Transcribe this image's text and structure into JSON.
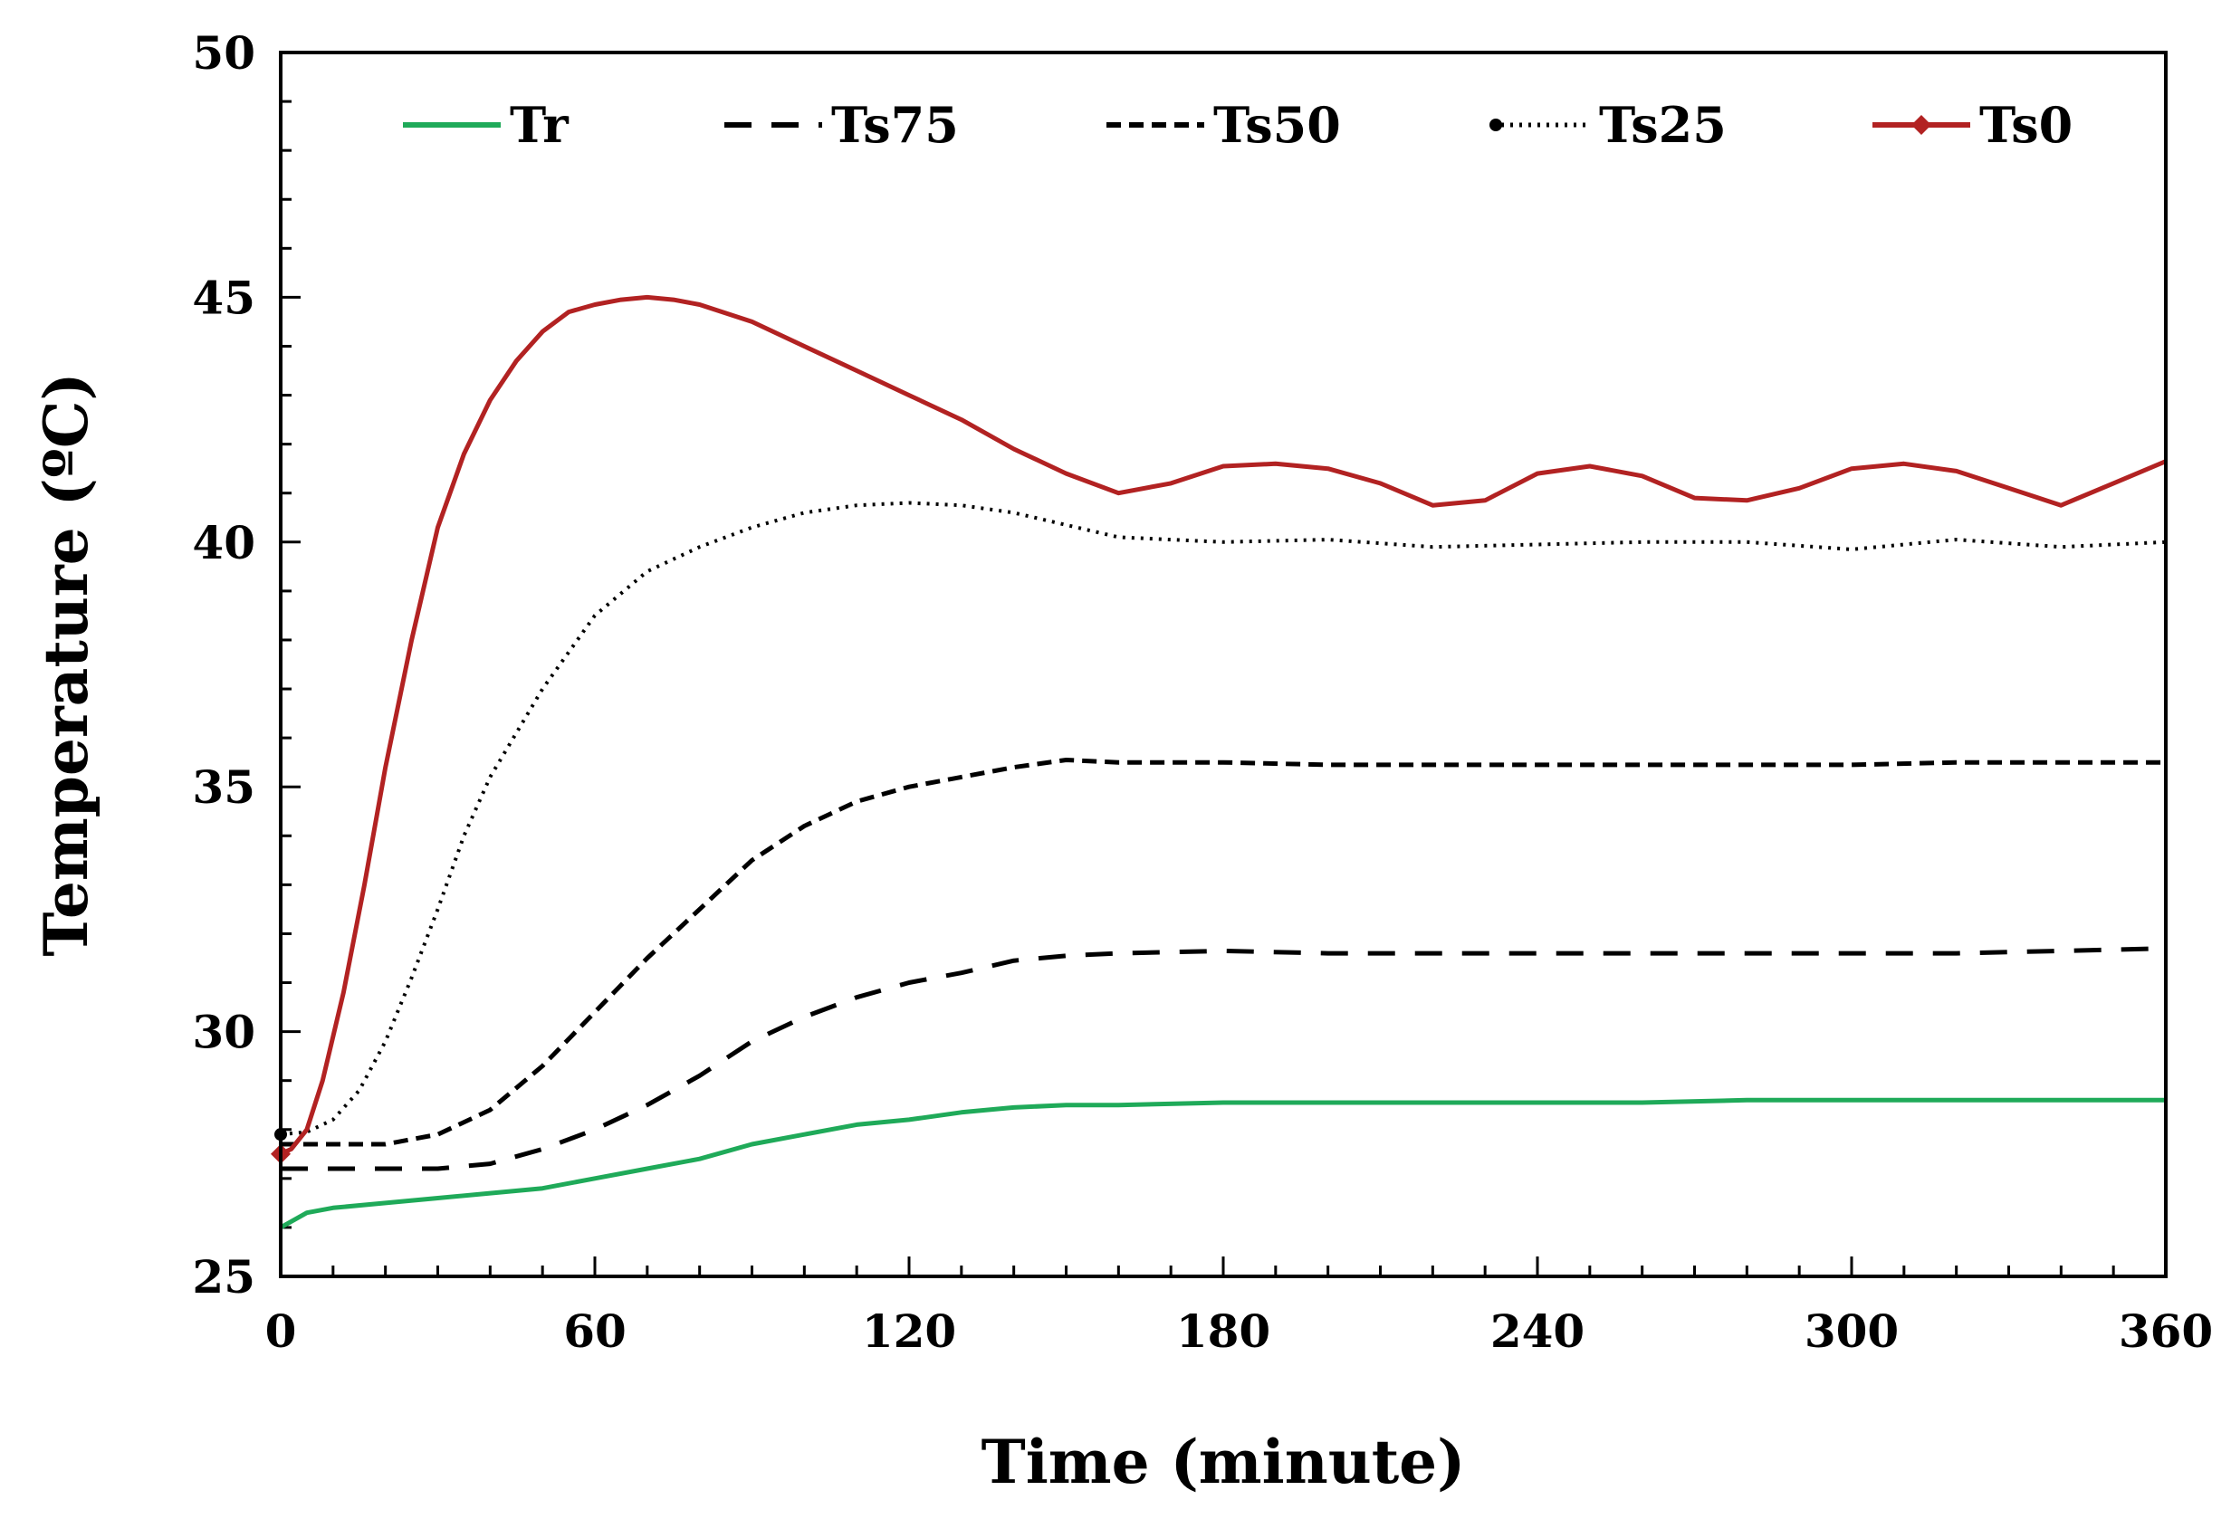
{
  "chart_data": {
    "type": "line",
    "title": "",
    "xlabel": "Time (minute)",
    "ylabel": "Temperature (ºC)",
    "xlim": [
      0,
      360
    ],
    "ylim": [
      25,
      50
    ],
    "xticks": [
      0,
      60,
      120,
      180,
      240,
      300,
      360
    ],
    "yticks": [
      25,
      30,
      35,
      40,
      45,
      50
    ],
    "legend_position": "top",
    "series": [
      {
        "name": "Tr",
        "color": "#1faa59",
        "style": "solid",
        "x": [
          0,
          5,
          10,
          20,
          30,
          40,
          50,
          60,
          70,
          80,
          90,
          100,
          110,
          120,
          130,
          140,
          150,
          160,
          180,
          200,
          220,
          240,
          260,
          280,
          300,
          320,
          340,
          360
        ],
        "y": [
          26.0,
          26.3,
          26.4,
          26.5,
          26.6,
          26.7,
          26.8,
          27.0,
          27.2,
          27.4,
          27.7,
          27.9,
          28.1,
          28.2,
          28.35,
          28.45,
          28.5,
          28.5,
          28.55,
          28.55,
          28.55,
          28.55,
          28.55,
          28.6,
          28.6,
          28.6,
          28.6,
          28.6
        ]
      },
      {
        "name": "Ts75",
        "color": "#000000",
        "style": "longdash",
        "x": [
          0,
          5,
          10,
          20,
          30,
          40,
          50,
          60,
          70,
          80,
          90,
          100,
          110,
          120,
          130,
          140,
          150,
          160,
          180,
          200,
          220,
          240,
          260,
          280,
          300,
          320,
          340,
          360
        ],
        "y": [
          27.2,
          27.2,
          27.2,
          27.2,
          27.2,
          27.3,
          27.6,
          28.0,
          28.5,
          29.1,
          29.8,
          30.3,
          30.7,
          31.0,
          31.2,
          31.45,
          31.55,
          31.6,
          31.65,
          31.6,
          31.6,
          31.6,
          31.6,
          31.6,
          31.6,
          31.6,
          31.65,
          31.7
        ]
      },
      {
        "name": "Ts50",
        "color": "#000000",
        "style": "dash",
        "x": [
          0,
          5,
          10,
          20,
          30,
          40,
          50,
          60,
          70,
          80,
          90,
          100,
          110,
          120,
          130,
          140,
          150,
          160,
          180,
          200,
          220,
          240,
          260,
          280,
          300,
          320,
          340,
          360
        ],
        "y": [
          27.7,
          27.7,
          27.7,
          27.7,
          27.9,
          28.4,
          29.3,
          30.4,
          31.5,
          32.5,
          33.5,
          34.2,
          34.7,
          35.0,
          35.2,
          35.4,
          35.55,
          35.5,
          35.5,
          35.45,
          35.45,
          35.45,
          35.45,
          35.45,
          35.45,
          35.5,
          35.5,
          35.5
        ]
      },
      {
        "name": "Ts25",
        "color": "#000000",
        "style": "dot",
        "x": [
          0,
          5,
          10,
          15,
          20,
          25,
          30,
          35,
          40,
          50,
          60,
          70,
          80,
          90,
          100,
          110,
          120,
          130,
          140,
          150,
          160,
          180,
          200,
          220,
          240,
          260,
          280,
          300,
          320,
          340,
          360
        ],
        "y": [
          27.9,
          27.95,
          28.2,
          28.8,
          29.8,
          31.1,
          32.5,
          34.0,
          35.2,
          37.0,
          38.5,
          39.4,
          39.9,
          40.3,
          40.6,
          40.75,
          40.8,
          40.75,
          40.6,
          40.35,
          40.1,
          40.0,
          40.05,
          39.9,
          39.95,
          40.0,
          40.0,
          39.85,
          40.05,
          39.9,
          40.0
        ]
      },
      {
        "name": "Ts0",
        "color": "#b22222",
        "style": "solid-marker",
        "x": [
          0,
          2,
          5,
          8,
          12,
          16,
          20,
          25,
          30,
          35,
          40,
          45,
          50,
          55,
          60,
          65,
          70,
          75,
          80,
          90,
          100,
          110,
          120,
          130,
          140,
          150,
          160,
          170,
          180,
          190,
          200,
          210,
          220,
          230,
          240,
          250,
          260,
          270,
          280,
          290,
          300,
          310,
          320,
          330,
          340,
          350,
          360
        ],
        "y": [
          27.5,
          27.6,
          28.0,
          29.0,
          30.8,
          33.0,
          35.4,
          38.0,
          40.3,
          41.8,
          42.9,
          43.7,
          44.3,
          44.7,
          44.85,
          44.95,
          45.0,
          44.95,
          44.85,
          44.5,
          44.0,
          43.5,
          43.0,
          42.5,
          41.9,
          41.4,
          41.0,
          41.2,
          41.55,
          41.6,
          41.5,
          41.2,
          40.75,
          40.85,
          41.4,
          41.55,
          41.35,
          40.9,
          40.85,
          41.1,
          41.5,
          41.6,
          41.45,
          41.1,
          40.75,
          41.2,
          41.65
        ]
      }
    ]
  }
}
